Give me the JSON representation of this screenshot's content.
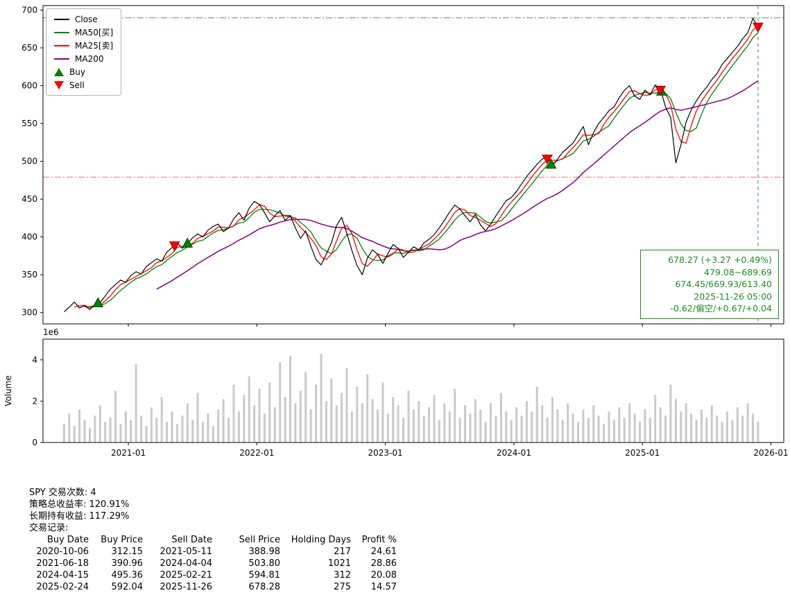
{
  "chart_data": {
    "type": "line",
    "symbol": "SPY",
    "x_start": 2020.5,
    "x_step": 0.04,
    "x_domain": [
      2020.336,
      2026.1
    ],
    "price_ylim": [
      285,
      706
    ],
    "volume_ylim": [
      0,
      5
    ],
    "price_ticks": [
      300,
      350,
      400,
      450,
      500,
      550,
      600,
      650,
      700
    ],
    "volume_ticks": [
      0,
      2,
      4
    ],
    "x_ticks": [
      {
        "t": 2021.0,
        "label": "2021-01"
      },
      {
        "t": 2022.0,
        "label": "2022-01"
      },
      {
        "t": 2023.0,
        "label": "2023-01"
      },
      {
        "t": 2024.0,
        "label": "2024-01"
      },
      {
        "t": 2025.0,
        "label": "2025-01"
      },
      {
        "t": 2026.0,
        "label": "2026-01"
      }
    ],
    "ylabel_volume": "Volume",
    "volume_scale_label": "1e6",
    "series_legend": [
      {
        "name": "Close",
        "color": "#000000"
      },
      {
        "name": "MA50[买]",
        "color": "#008000"
      },
      {
        "name": "MA25[卖]",
        "color": "#ff0000"
      },
      {
        "name": "MA200",
        "color": "#800080"
      }
    ],
    "marker_legend": [
      {
        "name": "Buy",
        "shape": "triangle-up",
        "color": "#008000"
      },
      {
        "name": "Sell",
        "shape": "triangle-down",
        "color": "#ff0000"
      }
    ],
    "ma_windows": {
      "ma25": 3,
      "ma50": 5,
      "ma200": 19
    },
    "close": [
      301,
      307,
      314,
      306,
      309,
      304,
      311,
      313,
      322,
      331,
      337,
      343,
      340,
      349,
      354,
      351,
      361,
      366,
      371,
      368,
      380,
      386,
      392,
      385,
      391,
      399,
      404,
      400,
      409,
      414,
      417,
      407,
      412,
      424,
      432,
      422,
      438,
      447,
      443,
      432,
      420,
      428,
      435,
      422,
      428,
      412,
      398,
      408,
      388,
      370,
      363,
      377,
      392,
      415,
      426,
      405,
      382,
      362,
      350,
      372,
      383,
      377,
      365,
      378,
      390,
      385,
      373,
      380,
      387,
      383,
      392,
      397,
      403,
      412,
      422,
      433,
      442,
      437,
      428,
      420,
      430,
      416,
      408,
      417,
      428,
      438,
      448,
      452,
      460,
      470,
      480,
      488,
      496,
      503,
      507,
      494,
      503,
      512,
      518,
      524,
      535,
      546,
      522,
      538,
      550,
      558,
      567,
      572,
      584,
      594,
      600,
      586,
      582,
      594,
      588,
      601,
      596,
      572,
      558,
      498,
      522,
      552,
      568,
      580,
      590,
      598,
      608,
      616,
      628,
      636,
      644,
      652,
      662,
      670,
      689,
      678.27
    ],
    "volume": [
      0.9,
      1.4,
      0.8,
      1.6,
      1.1,
      0.7,
      1.3,
      1.8,
      1.0,
      1.2,
      2.5,
      0.9,
      1.5,
      1.1,
      3.8,
      1.3,
      0.8,
      1.7,
      1.2,
      2.2,
      1.0,
      1.5,
      0.9,
      1.3,
      1.9,
      1.1,
      2.4,
      1.0,
      1.4,
      0.8,
      1.6,
      2.1,
      1.2,
      2.8,
      1.5,
      2.3,
      3.2,
      1.8,
      2.6,
      1.4,
      2.9,
      1.7,
      3.9,
      2.2,
      4.2,
      1.9,
      2.5,
      3.4,
      1.6,
      2.8,
      4.3,
      2.0,
      3.1,
      1.8,
      2.4,
      3.6,
      1.5,
      2.7,
      1.9,
      3.3,
      2.1,
      1.6,
      2.9,
      1.4,
      2.2,
      1.8,
      1.2,
      2.5,
      1.6,
      2.0,
      1.3,
      1.7,
      2.3,
      1.1,
      1.9,
      1.5,
      2.6,
      1.2,
      1.8,
      1.4,
      2.1,
      1.6,
      1.0,
      1.9,
      1.3,
      2.4,
      1.5,
      1.1,
      1.7,
      1.3,
      2.0,
      1.5,
      2.7,
      1.8,
      1.2,
      2.2,
      1.6,
      1.1,
      1.9,
      1.4,
      1.0,
      1.6,
      1.2,
      1.8,
      1.3,
      0.9,
      1.5,
      1.1,
      1.7,
      1.2,
      1.9,
      1.4,
      1.0,
      1.6,
      1.2,
      2.3,
      1.7,
      1.3,
      2.8,
      2.1,
      1.5,
      1.9,
      1.4,
      1.1,
      1.6,
      1.2,
      1.8,
      1.3,
      1.0,
      1.5,
      1.1,
      1.7,
      1.3,
      1.9,
      1.4,
      1.0
    ],
    "buys": [
      {
        "date": "2020-10-06",
        "x": 2020.764,
        "price": 312.15
      },
      {
        "date": "2021-06-18",
        "x": 2021.46,
        "price": 390.96
      },
      {
        "date": "2024-04-15",
        "x": 2024.29,
        "price": 495.36
      },
      {
        "date": "2025-02-24",
        "x": 2025.148,
        "price": 592.04
      }
    ],
    "sells": [
      {
        "date": "2021-05-11",
        "x": 2021.36,
        "price": 388.98
      },
      {
        "date": "2024-04-04",
        "x": 2024.26,
        "price": 503.8
      },
      {
        "date": "2025-02-21",
        "x": 2025.14,
        "price": 594.81
      },
      {
        "date": "2025-11-26",
        "x": 2025.9,
        "price": 678.28
      }
    ],
    "hlines": [
      {
        "value": 689.69,
        "color": "#228B22"
      },
      {
        "value": 479.08,
        "color": "#ff5555"
      }
    ],
    "vline": {
      "x": 2025.9,
      "color": "#228B22"
    }
  },
  "annotation": {
    "color": "#228B22",
    "lines": [
      "678.27 (+3.27 +0.49%)",
      "479.08~689.69",
      "674.45/669.93/613.40",
      "2025-11-26 05:00",
      "-0.62/偏空/+0.67/+0.04"
    ]
  },
  "summary": {
    "line1": "SPY 交易次数: 4",
    "line2": "策略总收益率: 120.91%",
    "line3": "长期持有收益: 117.29%",
    "line4": "交易记录:"
  },
  "trades_table": {
    "headers": [
      "Buy Date",
      "Buy Price",
      "Sell Date",
      "Sell Price",
      "Holding Days",
      "Profit %"
    ],
    "rows": [
      [
        "2020-10-06",
        "312.15",
        "2021-05-11",
        "388.98",
        "217",
        "24.61"
      ],
      [
        "2021-06-18",
        "390.96",
        "2024-04-04",
        "503.80",
        "1021",
        "28.86"
      ],
      [
        "2024-04-15",
        "495.36",
        "2025-02-21",
        "594.81",
        "312",
        "20.08"
      ],
      [
        "2025-02-24",
        "592.04",
        "2025-11-26",
        "678.28",
        "275",
        "14.57"
      ]
    ]
  }
}
